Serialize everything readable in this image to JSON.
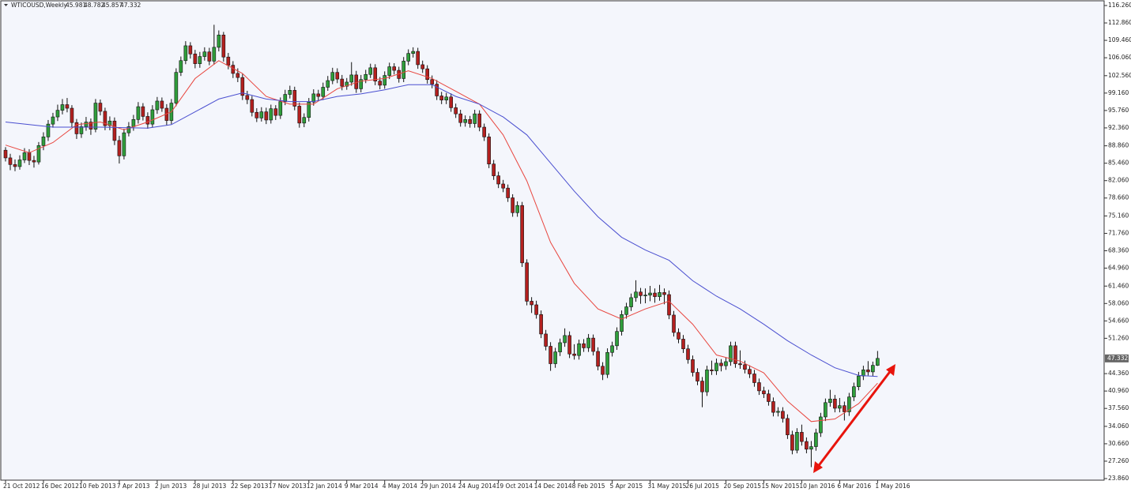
{
  "chart_data": {
    "type": "candlestick",
    "title": "WTICOUSD,Weekly",
    "candles": [
      [
        88.0,
        88.6,
        85.8,
        86.5
      ],
      [
        86.5,
        87.3,
        84.1,
        85.2
      ],
      [
        85.2,
        86.2,
        83.9,
        84.8
      ],
      [
        84.8,
        87.0,
        84.2,
        86.1
      ],
      [
        86.1,
        88.4,
        85.5,
        87.5
      ],
      [
        87.5,
        88.2,
        85.1,
        86.0
      ],
      [
        86.0,
        86.9,
        84.6,
        85.7
      ],
      [
        85.7,
        89.6,
        85.2,
        88.9
      ],
      [
        88.9,
        91.5,
        88.0,
        90.6
      ],
      [
        90.6,
        93.9,
        89.8,
        93.1
      ],
      [
        93.1,
        95.3,
        92.4,
        94.5
      ],
      [
        94.5,
        96.9,
        93.7,
        95.8
      ],
      [
        95.8,
        98.0,
        95.0,
        96.9
      ],
      [
        96.9,
        98.2,
        95.4,
        96.2
      ],
      [
        96.2,
        96.8,
        92.5,
        93.4
      ],
      [
        93.4,
        94.1,
        90.2,
        91.2
      ],
      [
        91.2,
        93.4,
        90.4,
        92.6
      ],
      [
        92.6,
        94.5,
        91.8,
        93.5
      ],
      [
        93.5,
        94.2,
        91.0,
        92.1
      ],
      [
        92.1,
        98.0,
        91.5,
        97.2
      ],
      [
        97.2,
        97.9,
        94.8,
        95.6
      ],
      [
        95.6,
        96.3,
        91.9,
        92.8
      ],
      [
        92.8,
        94.6,
        91.9,
        93.7
      ],
      [
        93.7,
        94.4,
        89.0,
        89.9
      ],
      [
        89.9,
        90.8,
        85.4,
        86.9
      ],
      [
        86.9,
        92.2,
        86.2,
        91.4
      ],
      [
        91.4,
        93.5,
        90.7,
        92.6
      ],
      [
        92.6,
        94.9,
        91.8,
        94.0
      ],
      [
        94.0,
        97.4,
        93.2,
        96.5
      ],
      [
        96.5,
        97.2,
        93.8,
        94.6
      ],
      [
        94.6,
        95.4,
        92.2,
        93.1
      ],
      [
        93.1,
        96.8,
        92.5,
        95.9
      ],
      [
        95.9,
        98.4,
        95.1,
        97.6
      ],
      [
        97.6,
        98.3,
        95.5,
        96.2
      ],
      [
        96.2,
        97.0,
        92.9,
        93.8
      ],
      [
        93.8,
        98.0,
        93.1,
        97.2
      ],
      [
        97.2,
        104.0,
        96.6,
        103.2
      ],
      [
        103.2,
        106.3,
        102.5,
        105.5
      ],
      [
        105.5,
        109.3,
        104.8,
        108.4
      ],
      [
        108.4,
        109.1,
        105.9,
        106.8
      ],
      [
        106.8,
        107.6,
        104.0,
        104.9
      ],
      [
        104.9,
        107.2,
        104.1,
        106.3
      ],
      [
        106.3,
        108.1,
        105.5,
        107.2
      ],
      [
        107.2,
        108.0,
        104.6,
        105.4
      ],
      [
        105.4,
        112.5,
        104.7,
        108.1
      ],
      [
        108.1,
        111.4,
        107.3,
        110.5
      ],
      [
        110.5,
        111.1,
        105.3,
        106.2
      ],
      [
        106.2,
        107.0,
        103.8,
        104.6
      ],
      [
        104.6,
        105.4,
        102.1,
        103.0
      ],
      [
        103.0,
        104.0,
        101.3,
        102.2
      ],
      [
        102.2,
        102.9,
        97.8,
        98.7
      ],
      [
        98.7,
        99.6,
        97.0,
        97.9
      ],
      [
        97.9,
        98.6,
        94.6,
        95.4
      ],
      [
        95.4,
        96.2,
        93.5,
        94.3
      ],
      [
        94.3,
        96.4,
        93.6,
        95.5
      ],
      [
        95.5,
        96.3,
        93.1,
        93.9
      ],
      [
        93.9,
        96.9,
        93.2,
        96.1
      ],
      [
        96.1,
        96.8,
        93.9,
        94.8
      ],
      [
        94.8,
        98.3,
        94.1,
        97.5
      ],
      [
        97.5,
        99.8,
        96.8,
        98.9
      ],
      [
        98.9,
        100.6,
        98.1,
        99.7
      ],
      [
        99.7,
        100.4,
        95.8,
        96.6
      ],
      [
        96.6,
        97.3,
        92.4,
        93.3
      ],
      [
        93.3,
        95.2,
        92.5,
        94.4
      ],
      [
        94.4,
        98.2,
        93.6,
        97.4
      ],
      [
        97.4,
        99.9,
        96.7,
        99.0
      ],
      [
        99.0,
        99.8,
        97.7,
        98.5
      ],
      [
        98.5,
        101.2,
        97.8,
        100.3
      ],
      [
        100.3,
        102.5,
        99.6,
        101.6
      ],
      [
        101.6,
        104.1,
        100.9,
        103.2
      ],
      [
        103.2,
        104.0,
        101.1,
        101.9
      ],
      [
        101.9,
        102.7,
        99.7,
        100.5
      ],
      [
        100.5,
        102.1,
        99.8,
        101.3
      ],
      [
        101.3,
        105.2,
        100.6,
        102.7
      ],
      [
        102.7,
        103.5,
        99.2,
        100.0
      ],
      [
        100.0,
        102.7,
        99.3,
        101.8
      ],
      [
        101.8,
        103.7,
        101.1,
        102.8
      ],
      [
        102.8,
        104.9,
        102.1,
        104.1
      ],
      [
        104.1,
        104.8,
        100.7,
        101.5
      ],
      [
        101.5,
        102.3,
        99.9,
        100.7
      ],
      [
        100.7,
        103.4,
        100.0,
        102.6
      ],
      [
        102.6,
        105.1,
        101.9,
        104.3
      ],
      [
        104.3,
        105.0,
        102.8,
        103.6
      ],
      [
        103.6,
        104.3,
        101.2,
        102.0
      ],
      [
        102.0,
        106.2,
        101.3,
        105.4
      ],
      [
        105.4,
        107.7,
        104.6,
        106.9
      ],
      [
        106.9,
        108.1,
        106.1,
        107.3
      ],
      [
        107.3,
        108.0,
        103.9,
        104.7
      ],
      [
        104.7,
        105.5,
        103.1,
        103.9
      ],
      [
        103.9,
        104.6,
        101.0,
        101.8
      ],
      [
        101.8,
        102.6,
        100.1,
        100.9
      ],
      [
        100.9,
        101.7,
        97.8,
        98.6
      ],
      [
        98.6,
        99.4,
        97.0,
        97.8
      ],
      [
        97.8,
        99.2,
        97.0,
        98.4
      ],
      [
        98.4,
        99.1,
        95.5,
        96.3
      ],
      [
        96.3,
        97.1,
        94.3,
        95.1
      ],
      [
        95.1,
        95.9,
        92.6,
        93.4
      ],
      [
        93.4,
        94.8,
        92.6,
        94.0
      ],
      [
        94.0,
        94.7,
        92.4,
        93.2
      ],
      [
        93.2,
        95.9,
        92.4,
        95.1
      ],
      [
        95.1,
        95.8,
        91.7,
        92.5
      ],
      [
        92.5,
        93.2,
        89.8,
        90.6
      ],
      [
        90.6,
        91.3,
        84.5,
        85.3
      ],
      [
        85.3,
        86.1,
        82.2,
        83.0
      ],
      [
        83.0,
        83.8,
        80.6,
        81.4
      ],
      [
        81.4,
        82.2,
        79.8,
        80.6
      ],
      [
        80.6,
        81.3,
        77.9,
        78.7
      ],
      [
        78.7,
        79.4,
        75.0,
        75.8
      ],
      [
        75.8,
        78.0,
        75.0,
        77.2
      ],
      [
        77.2,
        77.9,
        65.2,
        66.0
      ],
      [
        66.0,
        66.7,
        57.7,
        58.5
      ],
      [
        58.5,
        59.3,
        56.2,
        57.8
      ],
      [
        57.8,
        58.6,
        55.1,
        55.9
      ],
      [
        55.9,
        56.7,
        51.3,
        52.1
      ],
      [
        52.1,
        52.9,
        48.9,
        49.7
      ],
      [
        49.7,
        50.5,
        44.9,
        46.3
      ],
      [
        46.3,
        49.4,
        45.5,
        48.6
      ],
      [
        48.6,
        51.2,
        47.8,
        50.4
      ],
      [
        50.4,
        53.2,
        49.6,
        51.8
      ],
      [
        51.8,
        52.6,
        47.4,
        48.2
      ],
      [
        48.2,
        50.1,
        47.1,
        47.9
      ],
      [
        47.9,
        51.0,
        47.1,
        50.2
      ],
      [
        50.2,
        51.1,
        48.6,
        49.4
      ],
      [
        49.4,
        52.1,
        48.6,
        51.3
      ],
      [
        51.3,
        52.0,
        47.9,
        48.7
      ],
      [
        48.7,
        49.5,
        45.0,
        45.8
      ],
      [
        45.8,
        46.6,
        43.1,
        44.2
      ],
      [
        44.2,
        49.3,
        43.5,
        48.5
      ],
      [
        48.5,
        50.6,
        47.7,
        49.8
      ],
      [
        49.8,
        53.4,
        49.0,
        52.6
      ],
      [
        52.6,
        56.7,
        51.8,
        55.9
      ],
      [
        55.9,
        58.2,
        55.1,
        57.4
      ],
      [
        57.4,
        60.0,
        56.6,
        59.2
      ],
      [
        59.2,
        62.6,
        58.4,
        60.3
      ],
      [
        60.3,
        61.1,
        58.0,
        59.6
      ],
      [
        59.6,
        61.0,
        58.1,
        59.7
      ],
      [
        59.7,
        61.5,
        58.5,
        60.1
      ],
      [
        60.1,
        61.0,
        58.2,
        59.4
      ],
      [
        59.4,
        61.7,
        58.6,
        60.2
      ],
      [
        60.2,
        61.0,
        57.9,
        59.8
      ],
      [
        59.8,
        60.6,
        55.0,
        55.8
      ],
      [
        55.8,
        56.6,
        51.6,
        52.4
      ],
      [
        52.4,
        53.2,
        50.3,
        51.1
      ],
      [
        51.1,
        51.9,
        48.4,
        49.2
      ],
      [
        49.2,
        50.0,
        46.3,
        47.1
      ],
      [
        47.1,
        47.9,
        43.8,
        44.6
      ],
      [
        44.6,
        45.4,
        42.1,
        42.9
      ],
      [
        42.9,
        43.7,
        37.8,
        40.8
      ],
      [
        40.8,
        45.9,
        40.0,
        45.1
      ],
      [
        45.1,
        46.9,
        44.1,
        44.9
      ],
      [
        44.9,
        47.3,
        44.1,
        46.4
      ],
      [
        46.4,
        47.2,
        44.8,
        45.9
      ],
      [
        45.9,
        47.5,
        45.1,
        46.7
      ],
      [
        46.7,
        50.6,
        45.9,
        49.8
      ],
      [
        49.8,
        50.6,
        45.5,
        46.3
      ],
      [
        46.3,
        48.9,
        45.3,
        46.1
      ],
      [
        46.1,
        46.9,
        44.4,
        45.2
      ],
      [
        45.2,
        46.0,
        43.5,
        44.3
      ],
      [
        44.3,
        45.1,
        41.8,
        42.6
      ],
      [
        42.6,
        43.4,
        40.2,
        41.0
      ],
      [
        41.0,
        41.8,
        39.6,
        40.4
      ],
      [
        40.4,
        41.2,
        38.1,
        38.9
      ],
      [
        38.9,
        39.7,
        36.0,
        36.8
      ],
      [
        36.8,
        37.8,
        36.0,
        37.0
      ],
      [
        37.0,
        37.8,
        34.8,
        35.6
      ],
      [
        35.6,
        36.4,
        31.6,
        32.4
      ],
      [
        32.4,
        33.2,
        28.6,
        29.4
      ],
      [
        29.4,
        33.7,
        28.8,
        32.9
      ],
      [
        32.9,
        34.4,
        30.3,
        31.1
      ],
      [
        31.1,
        31.9,
        28.8,
        29.6
      ],
      [
        29.6,
        31.2,
        26.1,
        30.1
      ],
      [
        30.1,
        33.6,
        29.3,
        32.8
      ],
      [
        32.8,
        36.7,
        32.0,
        35.9
      ],
      [
        35.9,
        39.5,
        35.1,
        38.7
      ],
      [
        38.7,
        41.2,
        37.9,
        39.4
      ],
      [
        39.4,
        40.2,
        36.8,
        37.6
      ],
      [
        37.6,
        39.6,
        36.8,
        38.1
      ],
      [
        38.1,
        38.9,
        35.2,
        36.9
      ],
      [
        36.9,
        40.6,
        36.1,
        39.8
      ],
      [
        39.8,
        42.6,
        39.0,
        41.8
      ],
      [
        41.8,
        44.7,
        41.1,
        43.9
      ],
      [
        43.9,
        45.9,
        43.1,
        45.1
      ],
      [
        45.1,
        46.8,
        44.0,
        44.7
      ],
      [
        44.7,
        46.7,
        43.9,
        45.981
      ],
      [
        45.981,
        48.782,
        45.857,
        47.332
      ]
    ],
    "up_color": "#2f9e3b",
    "down_color": "#b3201f",
    "ma": [
      {
        "color": "#e8463f",
        "x": [
          0,
          5,
          10,
          15,
          20,
          25,
          30,
          35,
          40,
          45,
          50,
          55,
          60,
          65,
          70,
          75,
          80,
          85,
          90,
          95,
          100,
          105,
          110,
          115,
          120,
          125,
          130,
          135,
          140,
          145,
          150,
          155,
          160,
          165,
          170,
          175,
          180,
          184
        ],
        "values": [
          89.0,
          87.5,
          89.5,
          93.0,
          93.5,
          92.0,
          93.5,
          95.5,
          102.0,
          105.5,
          103.0,
          98.5,
          97.0,
          97.0,
          100.0,
          101.5,
          102.0,
          103.5,
          102.0,
          99.5,
          97.0,
          91.0,
          82.0,
          70.0,
          62.0,
          57.0,
          55.0,
          57.0,
          58.5,
          54.0,
          48.0,
          46.8,
          44.5,
          39.0,
          35.0,
          35.5,
          38.5,
          42.5
        ]
      },
      {
        "color": "#4a4fd0",
        "x": [
          0,
          10,
          20,
          30,
          35,
          40,
          45,
          50,
          55,
          60,
          65,
          70,
          75,
          80,
          85,
          90,
          95,
          100,
          105,
          110,
          115,
          120,
          125,
          130,
          135,
          140,
          145,
          150,
          155,
          160,
          165,
          170,
          175,
          180,
          184
        ],
        "values": [
          93.5,
          92.5,
          92.5,
          92.3,
          93.0,
          95.5,
          98.0,
          99.2,
          98.0,
          97.5,
          97.5,
          98.5,
          99.0,
          99.8,
          100.8,
          100.8,
          98.5,
          97.0,
          94.5,
          91.0,
          85.5,
          80.0,
          75.0,
          71.0,
          68.5,
          66.5,
          62.5,
          59.5,
          57.0,
          54.0,
          50.8,
          48.0,
          45.5,
          44.0,
          43.8
        ]
      }
    ],
    "xlim": [
      -1,
      231.8
    ],
    "xticks": [
      {
        "value": 0,
        "label": "21 Oct 2012"
      },
      {
        "value": 8,
        "label": "16 Dec 2012"
      },
      {
        "value": 16,
        "label": "10 Feb 2013"
      },
      {
        "value": 24,
        "label": "7 Apr 2013"
      },
      {
        "value": 32,
        "label": "2 Jun 2013"
      },
      {
        "value": 40,
        "label": "28 Jul 2013"
      },
      {
        "value": 48,
        "label": "22 Sep 2013"
      },
      {
        "value": 56,
        "label": "17 Nov 2013"
      },
      {
        "value": 64,
        "label": "12 Jan 2014"
      },
      {
        "value": 72,
        "label": "9 Mar 2014"
      },
      {
        "value": 80,
        "label": "4 May 2014"
      },
      {
        "value": 88,
        "label": "29 Jun 2014"
      },
      {
        "value": 96,
        "label": "24 Aug 2014"
      },
      {
        "value": 104,
        "label": "19 Oct 2014"
      },
      {
        "value": 112,
        "label": "14 Dec 2014"
      },
      {
        "value": 120,
        "label": "8 Feb 2015"
      },
      {
        "value": 128,
        "label": "5 Apr 2015"
      },
      {
        "value": 136,
        "label": "31 May 2015"
      },
      {
        "value": 144,
        "label": "26 Jul 2015"
      },
      {
        "value": 152,
        "label": "20 Sep 2015"
      },
      {
        "value": 160,
        "label": "15 Nov 2015"
      },
      {
        "value": 168,
        "label": "10 Jan 2016"
      },
      {
        "value": 176,
        "label": "6 Mar 2016"
      },
      {
        "value": 184,
        "label": "1 May 2016"
      }
    ],
    "ylim": [
      23.86,
      116.26
    ],
    "yticks": [
      {
        "value": 116.26,
        "label": "116.260"
      },
      {
        "value": 112.86,
        "label": "112.860"
      },
      {
        "value": 109.46,
        "label": "109.460"
      },
      {
        "value": 106.06,
        "label": "106.060"
      },
      {
        "value": 102.56,
        "label": "102.560"
      },
      {
        "value": 99.16,
        "label": "99.160"
      },
      {
        "value": 95.76,
        "label": "95.760"
      },
      {
        "value": 92.36,
        "label": "92.360"
      },
      {
        "value": 88.86,
        "label": "88.860"
      },
      {
        "value": 85.46,
        "label": "85.460"
      },
      {
        "value": 82.06,
        "label": "82.060"
      },
      {
        "value": 78.66,
        "label": "78.660"
      },
      {
        "value": 75.16,
        "label": "75.160"
      },
      {
        "value": 71.76,
        "label": "71.760"
      },
      {
        "value": 68.36,
        "label": "68.360"
      },
      {
        "value": 64.96,
        "label": "64.960"
      },
      {
        "value": 61.46,
        "label": "61.460"
      },
      {
        "value": 58.06,
        "label": "58.060"
      },
      {
        "value": 54.66,
        "label": "54.660"
      },
      {
        "value": 51.26,
        "label": "51.260"
      },
      {
        "value": 44.36,
        "label": "44.360"
      },
      {
        "value": 40.96,
        "label": "40.960"
      },
      {
        "value": 37.56,
        "label": "37.560"
      },
      {
        "value": 34.06,
        "label": "34.060"
      },
      {
        "value": 30.66,
        "label": "30.660"
      },
      {
        "value": 27.26,
        "label": "27.260"
      },
      {
        "value": 23.86,
        "label": "23.860"
      }
    ]
  }
}
